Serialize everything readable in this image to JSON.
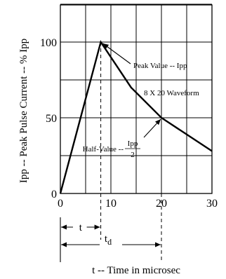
{
  "chart_data": {
    "type": "line",
    "xlabel": "t -- Time in microsec",
    "ylabel": "Ipp -- Peak Pulse Current -- % Ipp",
    "xlim": [
      0,
      30
    ],
    "ylim": [
      0,
      125
    ],
    "grid": true,
    "x_ticks": [
      "0",
      "10",
      "20",
      "30"
    ],
    "y_ticks": [
      "0",
      "50",
      "100"
    ],
    "series": [
      {
        "x": [
          0,
          8,
          14,
          20,
          30
        ],
        "y": [
          0,
          100,
          70,
          50,
          28
        ]
      }
    ],
    "annotations": {
      "peak": {
        "label": "Peak Value -- Ipp",
        "x": 8,
        "y": 100
      },
      "waveform": {
        "label": "8 X 20 Waveform"
      },
      "half_value": {
        "label": "Half-Value --",
        "fraction_numerator": "Ipp",
        "fraction_denominator": "2",
        "x": 20,
        "y": 50
      }
    },
    "dimensions": {
      "rise_time": {
        "label": "t",
        "from": 0,
        "to": 8
      },
      "decay_time": {
        "label": "t",
        "subscript": "d",
        "from": 0,
        "to": 20
      }
    }
  },
  "colors": {
    "line": "#000000",
    "grid": "#000000",
    "background": "#ffffff"
  }
}
